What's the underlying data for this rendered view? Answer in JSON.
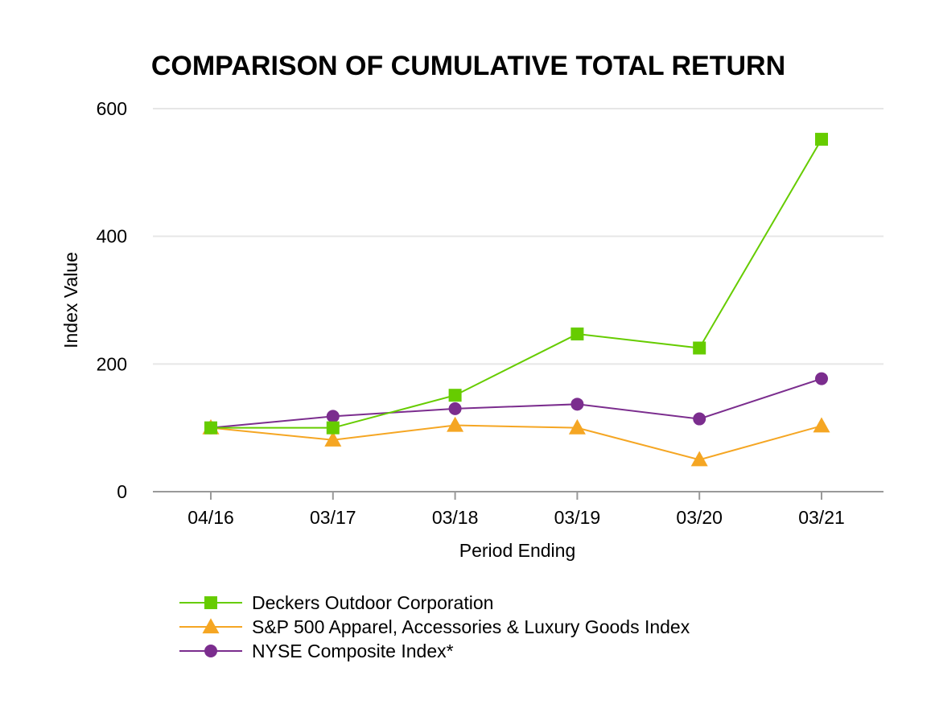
{
  "chart_data": {
    "type": "line",
    "title": "COMPARISON OF CUMULATIVE TOTAL RETURN",
    "xlabel": "Period Ending",
    "ylabel": "Index Value",
    "categories": [
      "04/16",
      "03/17",
      "03/18",
      "03/19",
      "03/20",
      "03/21"
    ],
    "ylim": [
      0,
      600
    ],
    "yticks": [
      0,
      200,
      400,
      600
    ],
    "grid": true,
    "legend_position": "bottom",
    "series": [
      {
        "name": "Deckers Outdoor Corporation",
        "marker": "square",
        "color": "#66cc00",
        "values": [
          100,
          100,
          151,
          247,
          225,
          552
        ]
      },
      {
        "name": "S&P 500 Apparel, Accessories & Luxury Goods Index",
        "marker": "triangle",
        "color": "#f5a623",
        "values": [
          100,
          81,
          104,
          100,
          50,
          103
        ]
      },
      {
        "name": "NYSE Composite Index*",
        "marker": "circle",
        "color": "#7b2d8e",
        "values": [
          100,
          118,
          130,
          137,
          114,
          177
        ]
      }
    ]
  }
}
